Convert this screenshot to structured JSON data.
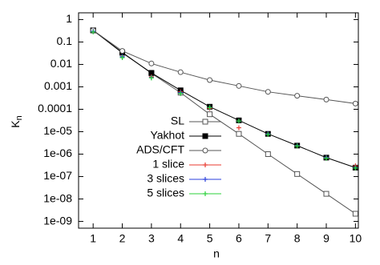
{
  "chart_data": {
    "type": "line",
    "xlabel": "n",
    "ylabel": "K",
    "ylabel_sub": "n",
    "x": [
      1,
      2,
      3,
      4,
      5,
      6,
      7,
      8,
      9,
      10
    ],
    "xlim": [
      0.5,
      10.1
    ],
    "xticks": [
      1,
      2,
      3,
      4,
      5,
      6,
      7,
      8,
      9,
      10
    ],
    "ylim": [
      5e-10,
      2
    ],
    "log_y": true,
    "yticks": [
      1,
      0.1,
      0.01,
      0.001,
      0.0001,
      {
        "value": 1e-05,
        "label": "1e-05"
      },
      {
        "value": 1e-06,
        "label": "1e-06"
      },
      {
        "value": 1e-07,
        "label": "1e-07"
      },
      {
        "value": 1e-08,
        "label": "1e-08"
      },
      {
        "value": 1e-09,
        "label": "1e-09"
      }
    ],
    "legend": "center-left",
    "series": [
      {
        "name": "SL",
        "color": "#555555",
        "marker": "square-open",
        "line": true,
        "values": [
          0.33,
          0.035,
          0.004,
          0.00055,
          6e-05,
          8e-06,
          1e-06,
          1.3e-07,
          1.7e-08,
          2.2e-09
        ]
      },
      {
        "name": "Yakhot",
        "color": "#000000",
        "marker": "square-filled",
        "line": true,
        "values": [
          0.33,
          0.033,
          0.0042,
          0.0007,
          0.00013,
          3.2e-05,
          8e-06,
          2.4e-06,
          7e-07,
          2.5e-07
        ]
      },
      {
        "name": "ADS/CFT",
        "color": "#555555",
        "marker": "circle-open",
        "line": true,
        "values": [
          0.33,
          0.04,
          0.011,
          0.0045,
          0.002,
          0.0011,
          0.0006,
          0.0004,
          0.00027,
          0.00018
        ]
      },
      {
        "name": "1 slice",
        "color": "#e8392f",
        "marker": "plus",
        "line": false,
        "values": [
          0.3,
          0.022,
          0.0028,
          0.0006,
          0.00011,
          1.5e-05,
          8e-06,
          2.3e-06,
          7e-07,
          3e-07
        ]
      },
      {
        "name": "3 slices",
        "color": "#2a3fdc",
        "marker": "plus",
        "line": false,
        "values": [
          0.3,
          0.022,
          0.0026,
          0.00055,
          0.00012,
          3e-05,
          8e-06,
          2.4e-06,
          7e-07,
          2.5e-07
        ]
      },
      {
        "name": "5 slices",
        "color": "#2bd13a",
        "marker": "plus",
        "line": false,
        "values": [
          0.28,
          0.02,
          0.0025,
          0.0005,
          0.00012,
          3e-05,
          7.5e-06,
          2.3e-06,
          6.5e-07,
          2.4e-07
        ]
      }
    ]
  }
}
